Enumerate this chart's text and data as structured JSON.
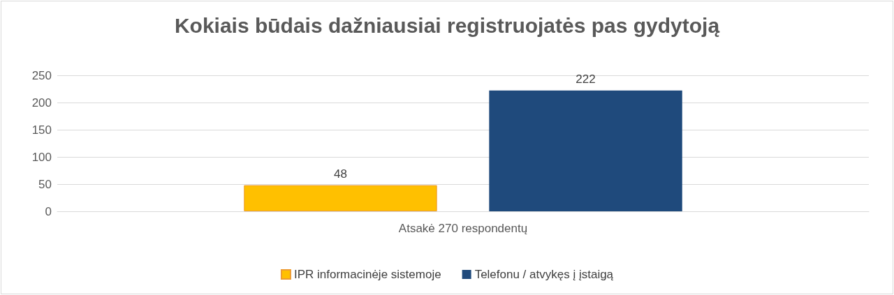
{
  "chart_data": {
    "type": "bar",
    "title": "Kokiais būdais dažniausiai registruojatės pas gydytoją",
    "categories": [
      "Atsakė 270 respondentų"
    ],
    "series": [
      {
        "name": "IPR informacinėje sistemoje",
        "color": "#ffc000",
        "values": [
          48
        ]
      },
      {
        "name": "Telefonu / atvykęs į įstaigą",
        "color": "#1f4a7c",
        "values": [
          222
        ]
      }
    ],
    "ylim": [
      0,
      250
    ],
    "yticks": [
      0,
      50,
      100,
      150,
      200,
      250
    ],
    "grid": "y",
    "legend": "bottom",
    "data_labels": true
  }
}
